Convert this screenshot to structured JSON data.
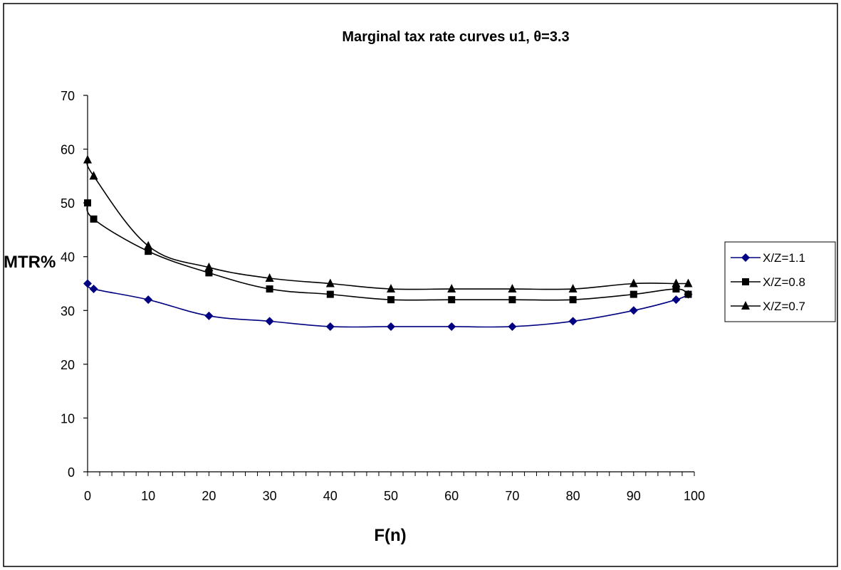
{
  "chart_data": {
    "type": "line",
    "title": "Marginal tax rate curves u1, θ=3.3",
    "xlabel": "F(n)",
    "ylabel": "MTR%",
    "xlim": [
      0,
      100
    ],
    "ylim": [
      0,
      70
    ],
    "x_ticks": [
      0,
      10,
      20,
      30,
      40,
      50,
      60,
      70,
      80,
      90,
      100
    ],
    "y_ticks": [
      0,
      10,
      20,
      30,
      40,
      50,
      60,
      70
    ],
    "grid": false,
    "legend_position": "right",
    "series": [
      {
        "name": "X/Z=1.1",
        "marker": "diamond",
        "color": "#000080",
        "x": [
          0,
          1,
          10,
          20,
          30,
          40,
          50,
          60,
          70,
          80,
          90,
          97,
          99
        ],
        "y": [
          35,
          34,
          32,
          29,
          28,
          27,
          27,
          27,
          27,
          28,
          30,
          32,
          33
        ]
      },
      {
        "name": "X/Z=0.8",
        "marker": "square",
        "color": "#000000",
        "x": [
          0,
          1,
          10,
          20,
          30,
          40,
          50,
          60,
          70,
          80,
          90,
          97,
          99
        ],
        "y": [
          50,
          47,
          41,
          37,
          34,
          33,
          32,
          32,
          32,
          32,
          33,
          34,
          33
        ]
      },
      {
        "name": "X/Z=0.7",
        "marker": "triangle",
        "color": "#000000",
        "x": [
          0,
          1,
          10,
          20,
          30,
          40,
          50,
          60,
          70,
          80,
          90,
          97,
          99
        ],
        "y": [
          58,
          55,
          42,
          38,
          36,
          35,
          34,
          34,
          34,
          34,
          35,
          35,
          35
        ]
      }
    ]
  }
}
